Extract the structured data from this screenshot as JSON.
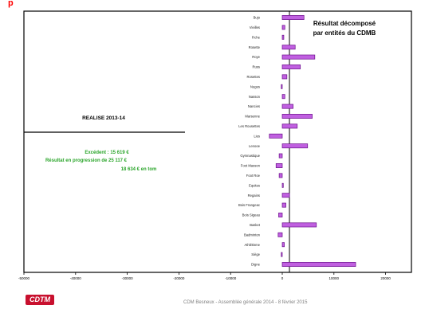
{
  "page_mark": "p",
  "footer": {
    "logo_text": "CDTM",
    "text": "CDM Besneux - Assemblée générale 2014 - 8 février 2015"
  },
  "colors": {
    "bar_fill": "#c060e0",
    "bar_stroke": "#6a0f8a",
    "panel_text_green": "#2aa52a",
    "mark_red": "#ff0000"
  },
  "panel": {
    "title": "REALISE 2013-14",
    "lines": [
      "Excédent :  15 619 €",
      "Résultat en progression de  25 117 €",
      "18 634 € en tom"
    ]
  },
  "chart_data": {
    "type": "bar",
    "orientation": "horizontal",
    "title": "Résultat décomposé par entités du CDMB",
    "categories": [
      "Bujo",
      "Vieilles",
      "Fiche",
      "Rosette",
      "Roye",
      "Russ",
      "Rosettes",
      "Nuges",
      "Nasson",
      "Nancies",
      "Marsenne",
      "Les Rousettes",
      "Lies",
      "Lenooe",
      "Gymnastique",
      "Foot Masson",
      "Foot Roe",
      "Equites",
      "Regains",
      "Bois Frangeac",
      "Bois Sigeau",
      "Basket",
      "Badminton",
      "Athlétisme",
      "Siège",
      "Digne"
    ],
    "values": [
      4200,
      500,
      300,
      2500,
      6300,
      3500,
      900,
      -200,
      500,
      2100,
      5800,
      2900,
      -2500,
      4900,
      -600,
      -1200,
      -600,
      200,
      1400,
      700,
      -700,
      6600,
      -800,
      400,
      -200,
      14200
    ],
    "xlim": [
      -50000,
      25000
    ],
    "xticks": [
      -50000,
      -40000,
      -30000,
      -20000,
      -10000,
      0,
      10000,
      20000
    ],
    "grid": false,
    "legend": "none"
  }
}
